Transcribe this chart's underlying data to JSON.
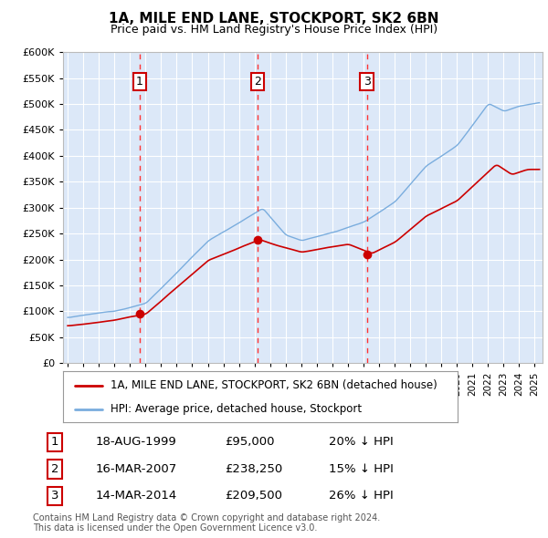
{
  "title": "1A, MILE END LANE, STOCKPORT, SK2 6BN",
  "subtitle": "Price paid vs. HM Land Registry's House Price Index (HPI)",
  "legend_line1": "1A, MILE END LANE, STOCKPORT, SK2 6BN (detached house)",
  "legend_line2": "HPI: Average price, detached house, Stockport",
  "footer1": "Contains HM Land Registry data © Crown copyright and database right 2024.",
  "footer2": "This data is licensed under the Open Government Licence v3.0.",
  "transactions": [
    {
      "num": 1,
      "date": "18-AUG-1999",
      "price": 95000,
      "pct": "20%",
      "dir": "↓",
      "year_x": 1999.63
    },
    {
      "num": 2,
      "date": "16-MAR-2007",
      "price": 238250,
      "pct": "15%",
      "dir": "↓",
      "year_x": 2007.21
    },
    {
      "num": 3,
      "date": "14-MAR-2014",
      "price": 209500,
      "pct": "26%",
      "dir": "↓",
      "year_x": 2014.21
    }
  ],
  "plot_bg_color": "#dce8f8",
  "red_line_color": "#cc0000",
  "blue_line_color": "#7aadde",
  "grid_color": "#ffffff",
  "dashed_line_color": "#ff3333",
  "box_color": "#cc0000",
  "ylim": [
    0,
    600000
  ],
  "yticks": [
    0,
    50000,
    100000,
    150000,
    200000,
    250000,
    300000,
    350000,
    400000,
    450000,
    500000,
    550000,
    600000
  ],
  "xlim_start": 1994.7,
  "xlim_end": 2025.5
}
